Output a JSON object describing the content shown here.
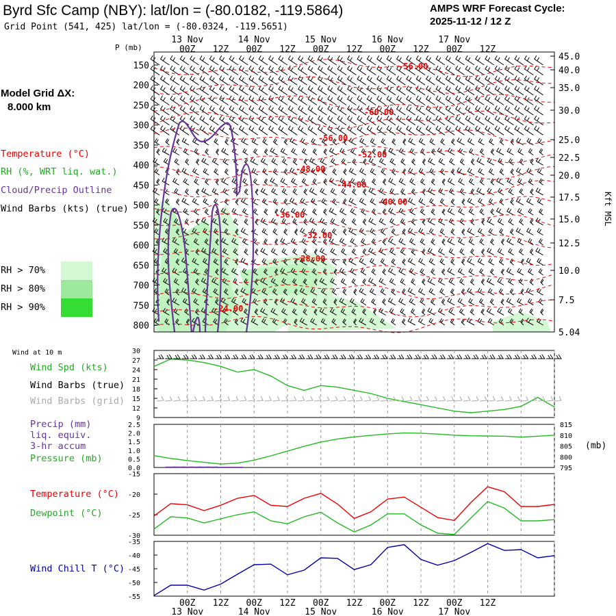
{
  "header": {
    "title": "Byrd Sfc Camp (NBY):  lat/lon = (-80.0182, -119.5864)",
    "cycle_line1": "AMPS WRF Forecast Cycle:",
    "cycle_line2": "2025-11-12 / 12  Z",
    "grid_point": "Grid Point (541, 425) lat/lon = (-80.0324, -119.5651)"
  },
  "model_grid": {
    "label": "Model Grid ΔX:",
    "value": "8.000 km"
  },
  "legend": {
    "temperature": "Temperature (°C)",
    "rh": "RH (%, WRT liq. wat.)",
    "cloud": "Cloud/Precip Outline",
    "wind": "Wind Barbs (kts) (true)",
    "rh_boxes": [
      {
        "label": "RH > 70%",
        "color": "#d3f8d3"
      },
      {
        "label": "RH > 80%",
        "color": "#9ee89e"
      },
      {
        "label": "RH > 90%",
        "color": "#34dc34"
      }
    ]
  },
  "colors": {
    "temperature": "#ee0000",
    "rh": "#22bb22",
    "cloud": "#663399",
    "wind_chill": "#0000aa",
    "grid_barb": "#aaaaaa"
  },
  "chart_data": [
    {
      "type": "contour",
      "name": "time-height cross section",
      "ylabel": "P (mb)",
      "ylabel_right": "Kft MSL",
      "time_ticks": [
        "00Z",
        "12Z",
        "00Z",
        "12Z",
        "00Z",
        "12Z",
        "00Z",
        "12Z",
        "00Z",
        "12Z"
      ],
      "date_labels": [
        "13 Nov",
        "14 Nov",
        "15 Nov",
        "16 Nov",
        "17 Nov"
      ],
      "pressure_ticks": [
        150,
        200,
        250,
        300,
        350,
        400,
        450,
        500,
        550,
        600,
        650,
        700,
        750,
        800
      ],
      "kft_ticks": [
        "45.0",
        "40.0",
        "35.0",
        "30.0",
        "25.0",
        "22.5",
        "20.0",
        "17.5",
        "15.0",
        "12.5",
        "10.0",
        "7.5",
        "5.04"
      ],
      "temperature_labels": [
        "-56.00",
        "-60.00",
        "-56.00",
        "-52.00",
        "-48.00",
        "-44.00",
        "-40.00",
        "-36.00",
        "-32.00",
        "-28.00",
        "-24.00"
      ]
    },
    {
      "type": "line",
      "name": "Wind at 10 m",
      "title": "Wind at 10 m",
      "series_labels": [
        "Wind Spd (kts)",
        "Wind Barbs (true)",
        "Wind Barbs (grid)"
      ],
      "yticks": [
        30,
        27,
        24,
        21,
        18,
        15,
        12,
        9
      ],
      "ylim": [
        9,
        30
      ],
      "x_hours": [
        0,
        6,
        12,
        18,
        24,
        30,
        36,
        42,
        48,
        54,
        60,
        66,
        72,
        78,
        84,
        90,
        96,
        102,
        108,
        114,
        120,
        126,
        132,
        138,
        144
      ],
      "wind_speed": [
        25,
        27.3,
        27,
        26.2,
        25,
        23.2,
        24,
        22,
        19,
        17.5,
        19,
        18.5,
        17.5,
        16.5,
        15,
        14,
        13,
        12,
        11,
        10.5,
        11,
        11.5,
        12.5,
        15.3,
        12.3
      ]
    },
    {
      "type": "line",
      "name": "Precip and Pressure",
      "series_labels": [
        "Precip (mm)",
        "liq. equiv.",
        "3-hr accum",
        "Pressure (mb)"
      ],
      "precip_ticks": [
        "2.5",
        "2.0",
        "1.5",
        "1.0",
        "0.5",
        "0.0"
      ],
      "pressure_ticks": [
        815,
        810,
        805,
        800,
        795
      ],
      "pressure_unit": "(mb)",
      "x_hours": [
        0,
        6,
        12,
        18,
        24,
        30,
        36,
        42,
        48,
        54,
        60,
        66,
        72,
        78,
        84,
        90,
        96,
        102,
        108,
        114,
        120,
        126,
        132,
        138,
        144
      ],
      "pressure": [
        800.5,
        799.2,
        798.2,
        797.4,
        796.6,
        797,
        798.4,
        800.4,
        802.6,
        804.8,
        806.8,
        808.2,
        809.2,
        809.9,
        810.6,
        811,
        810.9,
        810.5,
        810,
        809.7,
        809.6,
        809.5,
        809.1,
        809.5,
        810
      ],
      "precip_hours": [
        6,
        9,
        12,
        15,
        18,
        21,
        24,
        27,
        30
      ],
      "precip": [
        0.05,
        0.05,
        0.05,
        0.05,
        0.05,
        0.05,
        0.04,
        0.04,
        0.04
      ]
    },
    {
      "type": "line",
      "name": "Temperature and Dewpoint",
      "series_labels": [
        "Temperature (°C)",
        "Dewpoint (°C)"
      ],
      "yticks": [
        -15,
        -20,
        -25,
        -30
      ],
      "ylim": [
        -30,
        -15
      ],
      "x_hours": [
        0,
        6,
        12,
        18,
        24,
        30,
        36,
        42,
        48,
        54,
        60,
        66,
        72,
        78,
        84,
        90,
        96,
        102,
        108,
        114,
        120,
        126,
        132,
        138,
        144
      ],
      "temperature": [
        -25.3,
        -22.3,
        -22.6,
        -24,
        -22.7,
        -21,
        -20.3,
        -22.7,
        -23,
        -21,
        -19.8,
        -22.4,
        -25.9,
        -24.3,
        -21.2,
        -20.7,
        -23.2,
        -25.7,
        -26.4,
        -22,
        -18.2,
        -19.4,
        -23,
        -23,
        -22.5
      ],
      "dewpoint": [
        -28.5,
        -25.5,
        -25.8,
        -27,
        -26,
        -25,
        -24.3,
        -26.5,
        -27.2,
        -25.5,
        -24.4,
        -27,
        -29.2,
        -27.5,
        -24.8,
        -24.8,
        -27.5,
        -29.5,
        -29.8,
        -25.8,
        -21.8,
        -23.4,
        -26.5,
        -26.5,
        -26.2
      ]
    },
    {
      "type": "line",
      "name": "Wind Chill",
      "series_labels": [
        "Wind Chill T (°C)"
      ],
      "yticks": [
        -35,
        -40,
        -45,
        -50,
        -55
      ],
      "ylim": [
        -55,
        -35
      ],
      "x_hours": [
        0,
        6,
        12,
        18,
        24,
        30,
        36,
        42,
        48,
        54,
        60,
        66,
        72,
        78,
        84,
        90,
        96,
        102,
        108,
        114,
        120,
        126,
        132,
        138,
        144
      ],
      "wind_chill": [
        -54.8,
        -51,
        -51,
        -52.8,
        -50.6,
        -47,
        -43.5,
        -43.3,
        -47.2,
        -45.5,
        -41,
        -41.2,
        -45.3,
        -43.5,
        -37.2,
        -36.2,
        -41.6,
        -43.7,
        -42,
        -39,
        -35.8,
        -38.3,
        -38,
        -41,
        -40.2
      ]
    }
  ],
  "bottom_axis": {
    "time_ticks": [
      "00Z",
      "12Z",
      "00Z",
      "12Z",
      "00Z",
      "12Z",
      "00Z",
      "12Z",
      "00Z",
      "12Z"
    ],
    "date_labels": [
      "13 Nov",
      "14 Nov",
      "15 Nov",
      "16 Nov",
      "17 Nov"
    ]
  }
}
